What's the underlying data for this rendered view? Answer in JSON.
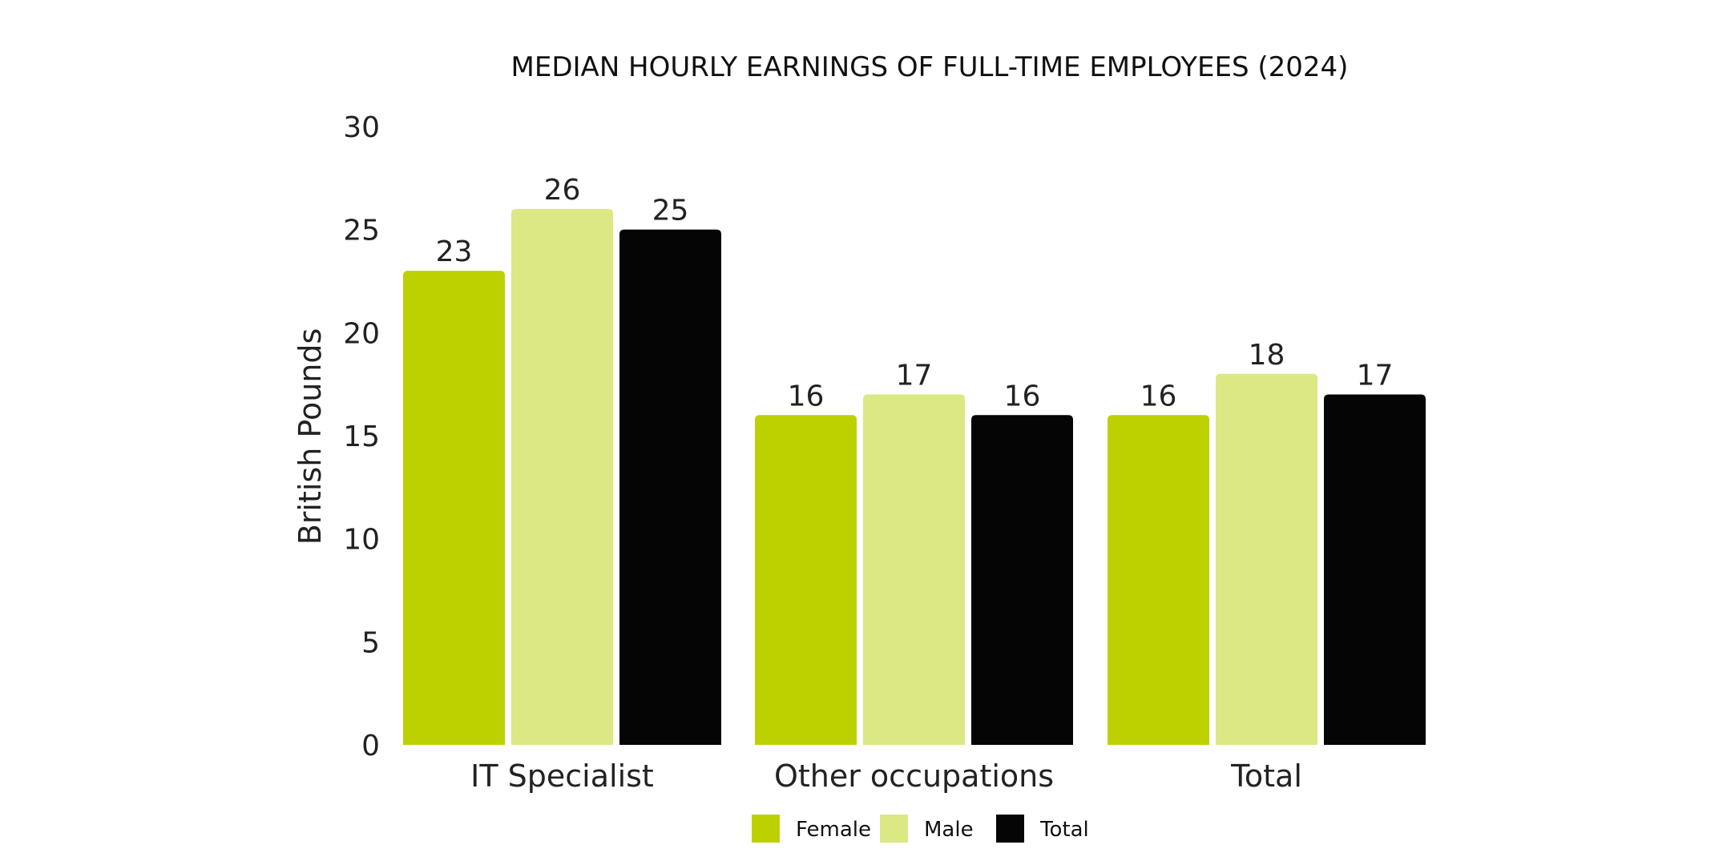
{
  "chart_data": {
    "type": "bar",
    "title": "MEDIAN HOURLY EARNINGS OF FULL-TIME EMPLOYEES (2024)",
    "xlabel": "",
    "ylabel": "British Pounds",
    "ylim": [
      0,
      30
    ],
    "yticks": [
      0,
      5,
      10,
      15,
      20,
      25,
      30
    ],
    "categories": [
      "IT Specialist",
      "Other occupations",
      "Total"
    ],
    "series": [
      {
        "name": "Female",
        "values": [
          23,
          16,
          16
        ],
        "color": "#bdd100"
      },
      {
        "name": "Male",
        "values": [
          26,
          17,
          18
        ],
        "color": "#dce883"
      },
      {
        "name": "Total",
        "values": [
          25,
          16,
          17
        ],
        "color": "#050505"
      }
    ],
    "grid": false,
    "legend_position": "bottom"
  }
}
